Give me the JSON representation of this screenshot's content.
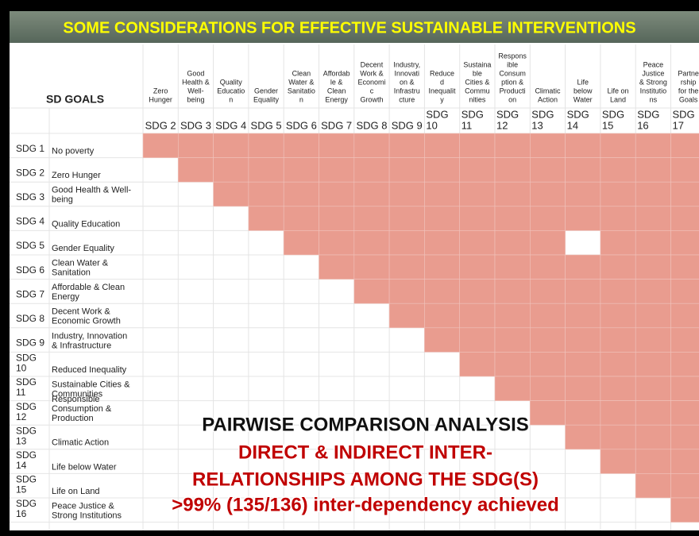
{
  "title": "SOME CONSIDERATIONS FOR EFFECTIVE SUSTAINABLE INTERVENTIONS",
  "table": {
    "header": "SD GOALS",
    "fill_color": "#e99c8f",
    "columns": [
      {
        "name": [
          "Zero",
          "Hunger"
        ],
        "code": [
          "SDG 2"
        ]
      },
      {
        "name": [
          "Good",
          "Health &",
          "Well-",
          "being"
        ],
        "code": [
          "SDG 3"
        ]
      },
      {
        "name": [
          "Quality",
          "Educatio",
          "n"
        ],
        "code": [
          "SDG 4"
        ]
      },
      {
        "name": [
          "Gender",
          "Equality"
        ],
        "code": [
          "SDG 5"
        ]
      },
      {
        "name": [
          "Clean",
          "Water &",
          "Sanitatio",
          "n"
        ],
        "code": [
          "SDG 6"
        ]
      },
      {
        "name": [
          "Affordab",
          "le &",
          "Clean",
          "Energy"
        ],
        "code": [
          "SDG 7"
        ]
      },
      {
        "name": [
          "Decent",
          "Work &",
          "Economi",
          "c",
          "Growth"
        ],
        "code": [
          "SDG 8"
        ]
      },
      {
        "name": [
          "Industry,",
          "Innovati",
          "on &",
          "Infrastru",
          "cture"
        ],
        "code": [
          "SDG 9"
        ]
      },
      {
        "name": [
          "Reduce",
          "d",
          "Inequalit",
          "y"
        ],
        "code": [
          "SDG",
          "10"
        ]
      },
      {
        "name": [
          "Sustaina",
          "ble",
          "Cities &",
          "Commu",
          "nities"
        ],
        "code": [
          "SDG",
          "11"
        ]
      },
      {
        "name": [
          "Respons",
          "ible",
          "Consum",
          "ption &",
          "Producti",
          "on"
        ],
        "code": [
          "SDG",
          "12"
        ]
      },
      {
        "name": [
          "Climatic",
          "Action"
        ],
        "code": [
          "SDG",
          "13"
        ]
      },
      {
        "name": [
          "Life",
          "below",
          "Water"
        ],
        "code": [
          "SDG",
          "14"
        ]
      },
      {
        "name": [
          "Life on",
          "Land"
        ],
        "code": [
          "SDG",
          "15"
        ]
      },
      {
        "name": [
          "Peace",
          "Justice",
          "& Strong",
          "Institutio",
          "ns"
        ],
        "code": [
          "SDG",
          "16"
        ]
      },
      {
        "name": [
          "Partne",
          "rship",
          "for the",
          "Goals"
        ],
        "code": [
          "SDG",
          "17"
        ]
      }
    ],
    "rows": [
      {
        "code": [
          "SDG 1"
        ],
        "name": [
          "No poverty"
        ],
        "cells": [
          1,
          1,
          1,
          1,
          1,
          1,
          1,
          1,
          1,
          1,
          1,
          1,
          1,
          1,
          1,
          1
        ]
      },
      {
        "code": [
          "SDG 2"
        ],
        "name": [
          "Zero Hunger"
        ],
        "cells": [
          0,
          1,
          1,
          1,
          1,
          1,
          1,
          1,
          1,
          1,
          1,
          1,
          1,
          1,
          1,
          1
        ]
      },
      {
        "code": [
          "SDG 3"
        ],
        "name": [
          "Good Health & Well-",
          "being"
        ],
        "cells": [
          0,
          0,
          1,
          1,
          1,
          1,
          1,
          1,
          1,
          1,
          1,
          1,
          1,
          1,
          1,
          1
        ]
      },
      {
        "code": [
          "SDG 4"
        ],
        "name": [
          "Quality Education"
        ],
        "cells": [
          0,
          0,
          0,
          1,
          1,
          1,
          1,
          1,
          1,
          1,
          1,
          1,
          1,
          1,
          1,
          1
        ]
      },
      {
        "code": [
          "SDG 5"
        ],
        "name": [
          "Gender Equality"
        ],
        "cells": [
          0,
          0,
          0,
          0,
          1,
          1,
          1,
          1,
          1,
          1,
          1,
          1,
          0,
          1,
          1,
          1
        ]
      },
      {
        "code": [
          "SDG 6"
        ],
        "name": [
          "Clean Water &",
          "Sanitation"
        ],
        "cells": [
          0,
          0,
          0,
          0,
          0,
          1,
          1,
          1,
          1,
          1,
          1,
          1,
          1,
          1,
          1,
          1
        ]
      },
      {
        "code": [
          "SDG 7"
        ],
        "name": [
          "Affordable & Clean",
          "Energy"
        ],
        "cells": [
          0,
          0,
          0,
          0,
          0,
          0,
          1,
          1,
          1,
          1,
          1,
          1,
          1,
          1,
          1,
          1
        ]
      },
      {
        "code": [
          "SDG 8"
        ],
        "name": [
          "Decent Work &",
          "Economic Growth"
        ],
        "cells": [
          0,
          0,
          0,
          0,
          0,
          0,
          0,
          1,
          1,
          1,
          1,
          1,
          1,
          1,
          1,
          1
        ]
      },
      {
        "code": [
          "SDG 9"
        ],
        "name": [
          "Industry, Innovation",
          "& Infrastructure"
        ],
        "cells": [
          0,
          0,
          0,
          0,
          0,
          0,
          0,
          0,
          1,
          1,
          1,
          1,
          1,
          1,
          1,
          1
        ]
      },
      {
        "code": [
          "SDG",
          "10"
        ],
        "name": [
          "Reduced Inequality"
        ],
        "cells": [
          0,
          0,
          0,
          0,
          0,
          0,
          0,
          0,
          0,
          1,
          1,
          1,
          1,
          1,
          1,
          1
        ]
      },
      {
        "code": [
          "SDG",
          "11"
        ],
        "name": [
          "Sustainable Cities &",
          "Communities"
        ],
        "cells": [
          0,
          0,
          0,
          0,
          0,
          0,
          0,
          0,
          0,
          0,
          1,
          1,
          1,
          1,
          1,
          1
        ]
      },
      {
        "code": [
          "SDG",
          "12"
        ],
        "name": [
          "Responsible",
          "Consumption &",
          "Production"
        ],
        "cells": [
          0,
          0,
          0,
          0,
          0,
          0,
          0,
          0,
          0,
          0,
          0,
          1,
          1,
          1,
          1,
          1
        ]
      },
      {
        "code": [
          "SDG",
          "13"
        ],
        "name": [
          "Climatic Action"
        ],
        "cells": [
          0,
          0,
          0,
          0,
          0,
          0,
          0,
          0,
          0,
          0,
          0,
          0,
          1,
          1,
          1,
          1
        ]
      },
      {
        "code": [
          "SDG",
          "14"
        ],
        "name": [
          "Life below Water"
        ],
        "cells": [
          0,
          0,
          0,
          0,
          0,
          0,
          0,
          0,
          0,
          0,
          0,
          0,
          0,
          1,
          1,
          1
        ]
      },
      {
        "code": [
          "SDG",
          "15"
        ],
        "name": [
          "Life on Land"
        ],
        "cells": [
          0,
          0,
          0,
          0,
          0,
          0,
          0,
          0,
          0,
          0,
          0,
          0,
          0,
          0,
          1,
          1
        ]
      },
      {
        "code": [
          "SDG",
          "16"
        ],
        "name": [
          "Peace Justice &",
          "Strong Institutions"
        ],
        "cells": [
          0,
          0,
          0,
          0,
          0,
          0,
          0,
          0,
          0,
          0,
          0,
          0,
          0,
          0,
          0,
          1
        ]
      }
    ]
  },
  "overlay": [
    "PAIRWISE COMPARISON ANALYSIS",
    "DIRECT & INDIRECT INTER-",
    "RELATIONSHIPS AMONG THE SDG(S)",
    ">99% (135/136)  inter-dependency achieved"
  ]
}
